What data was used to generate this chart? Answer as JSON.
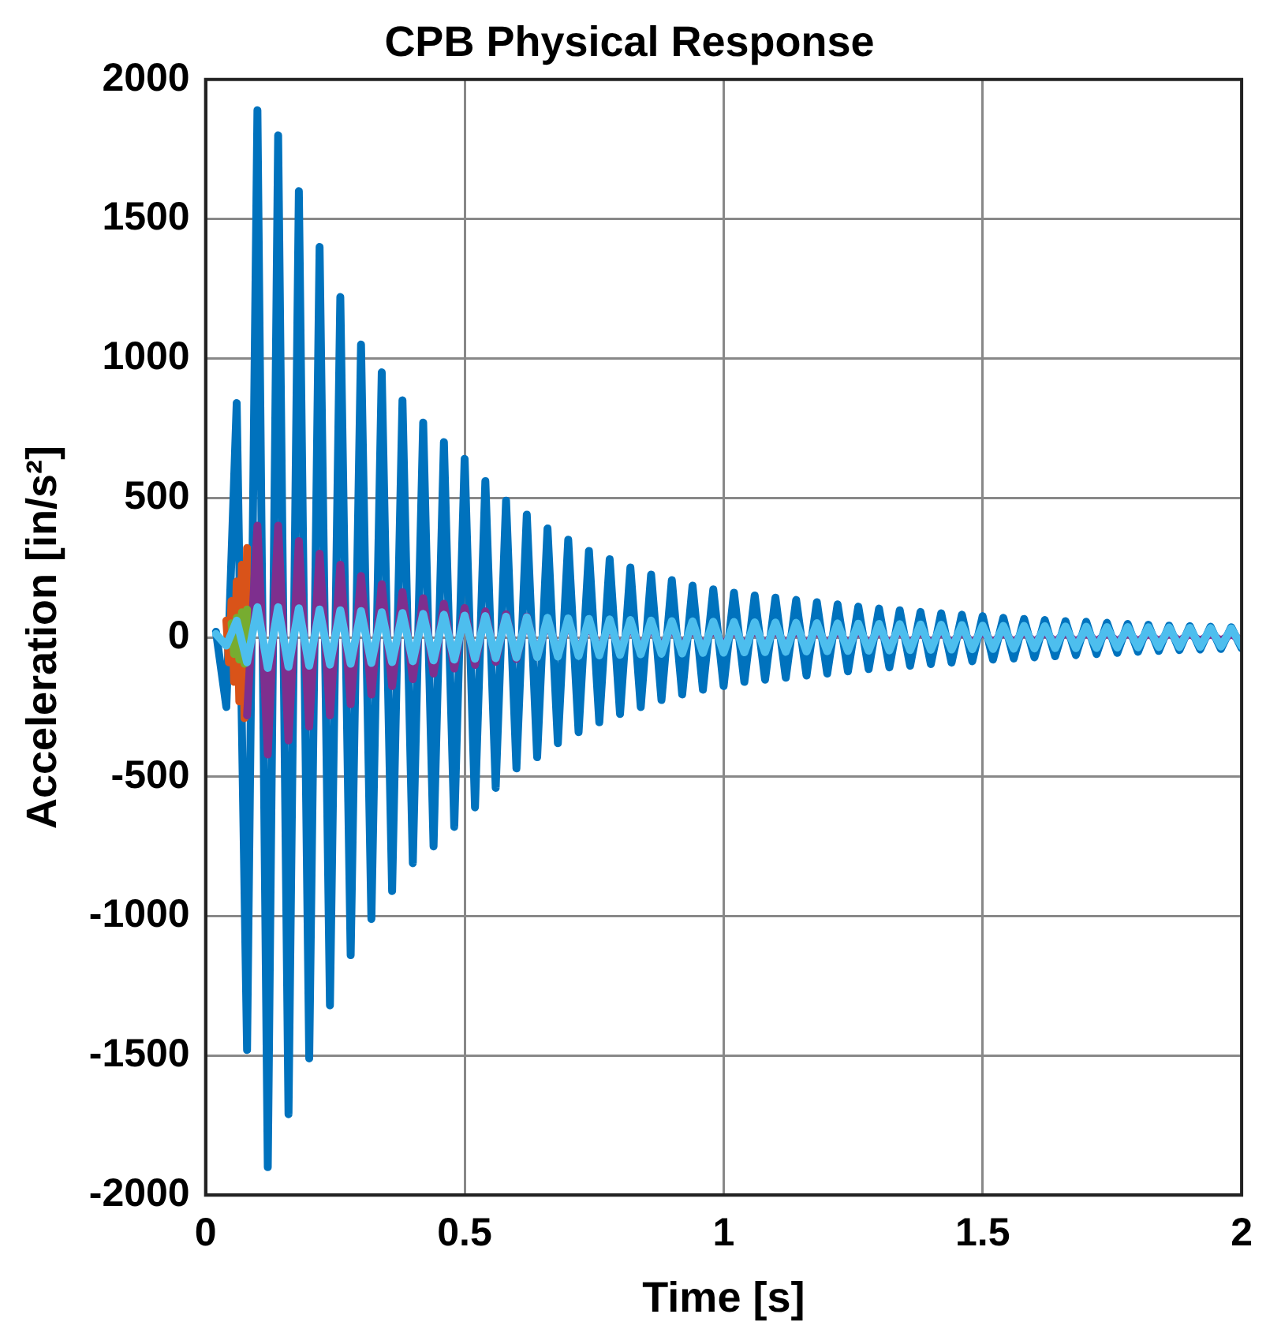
{
  "chart_data": {
    "type": "line",
    "title": "CPB Physical Response",
    "xlabel": "Time [s]",
    "ylabel": "Acceleration [in/s²]",
    "xlim": [
      0,
      2
    ],
    "xticks": [
      0,
      0.5,
      {
        "value": 1,
        "label": "1"
      },
      1.5,
      {
        "value": 2,
        "label": "2"
      }
    ],
    "ylim": [
      -2000,
      2000
    ],
    "yticks": [
      {
        "value": -2000,
        "label": "-2000"
      },
      {
        "value": -1500,
        "label": "-1500"
      },
      {
        "value": -1000,
        "label": "-1000"
      },
      -500,
      0,
      500,
      {
        "value": 1000,
        "label": "1000"
      },
      {
        "value": 1500,
        "label": "1500"
      },
      {
        "value": 2000,
        "label": "2000"
      }
    ],
    "grid": true,
    "legend": false,
    "marker": "none",
    "line_style": "solid",
    "x": [
      0.02,
      0.04,
      0.06,
      0.08,
      0.1,
      0.12,
      0.14,
      0.16,
      0.18,
      0.2,
      0.22,
      0.24,
      0.26,
      0.28,
      0.3,
      0.32,
      0.34,
      0.36,
      0.38,
      0.4,
      0.42,
      0.44,
      0.46,
      0.48,
      0.5,
      0.52,
      0.54,
      0.56,
      0.58,
      0.6,
      0.62,
      0.64,
      0.66,
      0.68,
      0.7,
      0.72,
      0.74,
      0.76,
      0.78,
      0.8,
      0.82,
      0.84,
      0.86,
      0.88,
      0.9,
      0.92,
      0.94,
      0.96,
      0.98,
      1,
      1.02,
      1.04,
      1.06,
      1.08,
      1.1,
      1.12,
      1.14,
      1.16,
      1.18,
      1.2,
      1.22,
      1.24,
      1.26,
      1.28,
      1.3,
      1.32,
      1.34,
      1.36,
      1.38,
      1.4,
      1.42,
      1.44,
      1.46,
      1.48,
      1.5,
      1.52,
      1.54,
      1.56,
      1.58,
      1.6,
      1.62,
      1.64,
      1.66,
      1.68,
      1.7,
      1.72,
      1.74,
      1.76,
      1.78,
      1.8,
      1.82,
      1.84,
      1.86,
      1.88,
      1.9,
      1.92,
      1.94,
      1.96,
      1.98,
      2
    ],
    "series": [
      {
        "color": "#0072bd",
        "values": [
          20,
          -250,
          840,
          -1480,
          1890,
          -1900,
          1800,
          -1710,
          1600,
          -1510,
          1400,
          -1320,
          1220,
          -1140,
          1050,
          -1010,
          950,
          -910,
          850,
          -810,
          770,
          -750,
          700,
          -680,
          640,
          -610,
          560,
          -540,
          490,
          -470,
          440,
          -430,
          390,
          -380,
          350,
          -340,
          310,
          -305,
          280,
          -275,
          250,
          -250,
          225,
          -225,
          205,
          -205,
          185,
          -188,
          172,
          -175,
          160,
          -160,
          150,
          -152,
          142,
          -145,
          134,
          -137,
          126,
          -130,
          118,
          -122,
          110,
          -114,
          103,
          -108,
          97,
          -102,
          91,
          -96,
          86,
          -91,
          81,
          -86,
          76,
          -80,
          70,
          -76,
          66,
          -72,
          62,
          -68,
          58,
          -64,
          56,
          -60,
          52,
          -56,
          48,
          -52,
          45,
          -49,
          42,
          -46,
          40,
          -44,
          38,
          -42,
          36,
          -40
        ]
      },
      {
        "color": "#d95319",
        "x": [
          0.04,
          0.045,
          0.05,
          0.055,
          0.06,
          0.065,
          0.07,
          0.075,
          0.08
        ],
        "values": [
          60,
          -90,
          130,
          -160,
          200,
          -230,
          260,
          -290,
          320
        ]
      },
      {
        "color": "#7e2f8e",
        "values": [
          null,
          null,
          null,
          -280,
          400,
          -420,
          400,
          -370,
          345,
          -320,
          300,
          -280,
          260,
          -240,
          220,
          -205,
          190,
          -175,
          162,
          -150,
          140,
          -130,
          120,
          -112,
          105,
          -99,
          93,
          -88,
          83,
          -78,
          74,
          -70,
          66,
          -63,
          60,
          -57,
          54,
          -51,
          49,
          -47,
          45,
          -43,
          41,
          -40,
          38,
          -37,
          36,
          -35,
          34,
          -33,
          32,
          -32,
          31,
          -31,
          30,
          -30,
          29,
          -29,
          28,
          -28,
          27,
          -27,
          26,
          -26,
          25,
          -25,
          24,
          -24,
          23,
          -23,
          22,
          -22,
          21,
          -21,
          20,
          -20,
          19,
          -19,
          19,
          -18,
          18,
          -17,
          17,
          -17,
          16,
          -16,
          16,
          -15,
          15,
          -15,
          14,
          -14,
          14,
          -13,
          13,
          -13,
          13,
          -12,
          12,
          -12
        ]
      },
      {
        "color": "#77ac30",
        "x": [
          0.05,
          0.055,
          0.06,
          0.065,
          0.07,
          0.075,
          0.08
        ],
        "values": [
          50,
          -60,
          70,
          -80,
          90,
          -95,
          100
        ]
      },
      {
        "color": "#4dbeee",
        "values": [
          12,
          -30,
          60,
          -90,
          108,
          -110,
          108,
          -106,
          104,
          -102,
          100,
          -98,
          97,
          -95,
          94,
          -92,
          90,
          -89,
          87,
          -86,
          84,
          -83,
          81,
          -80,
          78,
          -77,
          76,
          -75,
          74,
          -73,
          72,
          -71,
          70,
          -69,
          68,
          -67,
          66,
          -65,
          64,
          -63,
          62,
          -61,
          60,
          -59,
          58,
          -58,
          57,
          -56,
          56,
          -55,
          55,
          -54,
          54,
          -53,
          53,
          -52,
          52,
          -51,
          51,
          -50,
          50,
          -49,
          49,
          -48,
          48,
          -47,
          47,
          -46,
          46,
          -45,
          45,
          -44,
          44,
          -43,
          42,
          -42,
          41,
          -41,
          41,
          -40,
          40,
          -39,
          39,
          -39,
          38,
          -38,
          37,
          -37,
          37,
          -36,
          36,
          -35,
          35,
          -35,
          34,
          -34,
          33,
          -33,
          32,
          -32
        ]
      }
    ]
  }
}
